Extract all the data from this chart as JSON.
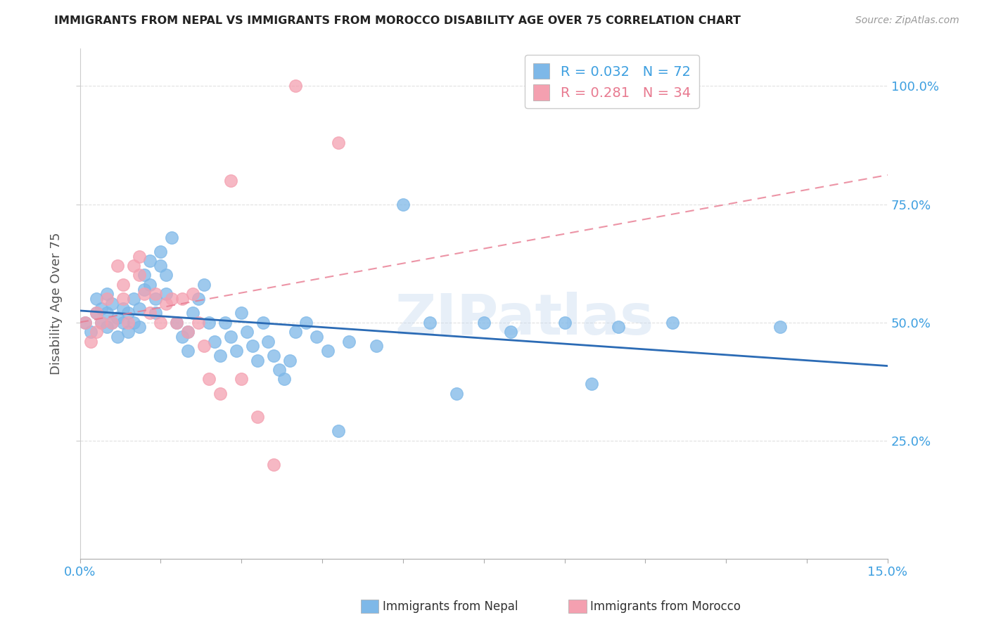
{
  "title": "IMMIGRANTS FROM NEPAL VS IMMIGRANTS FROM MOROCCO DISABILITY AGE OVER 75 CORRELATION CHART",
  "source": "Source: ZipAtlas.com",
  "ylabel": "Disability Age Over 75",
  "xlim": [
    0.0,
    0.15
  ],
  "ylim": [
    0.0,
    1.08
  ],
  "ytick_values": [
    0.25,
    0.5,
    0.75,
    1.0
  ],
  "ytick_labels": [
    "25.0%",
    "50.0%",
    "75.0%",
    "100.0%"
  ],
  "xtick_values": [
    0.0,
    0.015,
    0.03,
    0.045,
    0.06,
    0.075,
    0.09,
    0.105,
    0.12,
    0.135,
    0.15
  ],
  "nepal_color": "#7EB8E8",
  "morocco_color": "#F4A0B0",
  "nepal_line_color": "#2B6BB5",
  "morocco_line_color": "#E87A90",
  "nepal_R": 0.032,
  "nepal_N": 72,
  "morocco_R": 0.281,
  "morocco_N": 34,
  "legend_label_nepal": "Immigrants from Nepal",
  "legend_label_morocco": "Immigrants from Morocco",
  "watermark": "ZIPatlas",
  "background_color": "#FFFFFF",
  "nepal_x": [
    0.001,
    0.002,
    0.003,
    0.003,
    0.004,
    0.004,
    0.005,
    0.005,
    0.005,
    0.006,
    0.006,
    0.007,
    0.007,
    0.008,
    0.008,
    0.009,
    0.009,
    0.01,
    0.01,
    0.011,
    0.011,
    0.012,
    0.012,
    0.013,
    0.013,
    0.014,
    0.014,
    0.015,
    0.015,
    0.016,
    0.016,
    0.017,
    0.018,
    0.019,
    0.02,
    0.02,
    0.021,
    0.022,
    0.023,
    0.024,
    0.025,
    0.026,
    0.027,
    0.028,
    0.029,
    0.03,
    0.031,
    0.032,
    0.033,
    0.034,
    0.035,
    0.036,
    0.037,
    0.038,
    0.039,
    0.04,
    0.042,
    0.044,
    0.046,
    0.048,
    0.05,
    0.055,
    0.06,
    0.065,
    0.07,
    0.075,
    0.08,
    0.09,
    0.095,
    0.1,
    0.11,
    0.13
  ],
  "nepal_y": [
    0.5,
    0.48,
    0.52,
    0.55,
    0.5,
    0.53,
    0.49,
    0.52,
    0.56,
    0.5,
    0.54,
    0.51,
    0.47,
    0.5,
    0.53,
    0.48,
    0.52,
    0.5,
    0.55,
    0.49,
    0.53,
    0.6,
    0.57,
    0.63,
    0.58,
    0.55,
    0.52,
    0.65,
    0.62,
    0.6,
    0.56,
    0.68,
    0.5,
    0.47,
    0.44,
    0.48,
    0.52,
    0.55,
    0.58,
    0.5,
    0.46,
    0.43,
    0.5,
    0.47,
    0.44,
    0.52,
    0.48,
    0.45,
    0.42,
    0.5,
    0.46,
    0.43,
    0.4,
    0.38,
    0.42,
    0.48,
    0.5,
    0.47,
    0.44,
    0.27,
    0.46,
    0.45,
    0.75,
    0.5,
    0.35,
    0.5,
    0.48,
    0.5,
    0.37,
    0.49,
    0.5,
    0.49
  ],
  "morocco_x": [
    0.001,
    0.002,
    0.003,
    0.003,
    0.004,
    0.005,
    0.006,
    0.007,
    0.008,
    0.008,
    0.009,
    0.01,
    0.011,
    0.011,
    0.012,
    0.013,
    0.014,
    0.015,
    0.016,
    0.017,
    0.018,
    0.019,
    0.02,
    0.021,
    0.022,
    0.023,
    0.024,
    0.026,
    0.028,
    0.03,
    0.033,
    0.036,
    0.04,
    0.048
  ],
  "morocco_y": [
    0.5,
    0.46,
    0.52,
    0.48,
    0.5,
    0.55,
    0.5,
    0.62,
    0.58,
    0.55,
    0.5,
    0.62,
    0.64,
    0.6,
    0.56,
    0.52,
    0.56,
    0.5,
    0.54,
    0.55,
    0.5,
    0.55,
    0.48,
    0.56,
    0.5,
    0.45,
    0.38,
    0.35,
    0.8,
    0.38,
    0.3,
    0.2,
    1.0,
    0.88
  ]
}
